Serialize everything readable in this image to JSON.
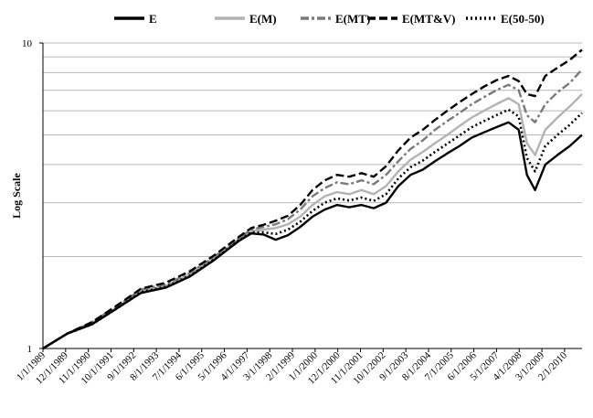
{
  "chart_data": {
    "type": "line",
    "ylabel": "Log Scale",
    "xlabel": "",
    "title": "",
    "y_scale": "log",
    "ylim": [
      1,
      10
    ],
    "y_ticks": [
      "1",
      "10"
    ],
    "grid": "horizontal",
    "legend_position": "top",
    "x_tick_labels": [
      "1/1/1989",
      "12/1/1989",
      "11/1/1990",
      "10/1/1991",
      "9/1/1992",
      "8/1/1993",
      "7/1/1994",
      "6/1/1995",
      "5/1/1996",
      "4/1/1997",
      "3/1/1998",
      "2/1/1999",
      "1/1/2000",
      "12/1/2000",
      "11/1/2001",
      "10/1/2002",
      "9/1/2003",
      "8/1/2004",
      "7/1/2005",
      "6/1/2006",
      "5/1/2007",
      "4/1/2008",
      "3/1/2009",
      "2/1/2010"
    ],
    "x": [
      "1989-01",
      "1990-01",
      "1991-01",
      "1992-01",
      "1993-01",
      "1994-01",
      "1995-01",
      "1996-01",
      "1997-01",
      "1997-07",
      "1998-01",
      "1998-07",
      "1999-01",
      "1999-07",
      "2000-01",
      "2000-07",
      "2001-01",
      "2001-07",
      "2002-01",
      "2002-07",
      "2003-01",
      "2003-07",
      "2004-01",
      "2004-07",
      "2005-01",
      "2005-07",
      "2006-01",
      "2006-07",
      "2007-01",
      "2007-07",
      "2008-01",
      "2008-06",
      "2008-10",
      "2009-02",
      "2009-07",
      "2010-01",
      "2010-07",
      "2011-01"
    ],
    "series": [
      {
        "name": "E",
        "color": "#000000",
        "style": "solid",
        "values": [
          1.0,
          1.12,
          1.2,
          1.35,
          1.52,
          1.58,
          1.72,
          1.95,
          2.25,
          2.38,
          2.36,
          2.27,
          2.35,
          2.5,
          2.7,
          2.85,
          2.95,
          2.9,
          2.95,
          2.88,
          3.0,
          3.4,
          3.7,
          3.85,
          4.1,
          4.35,
          4.6,
          4.9,
          5.1,
          5.3,
          5.5,
          5.2,
          3.7,
          3.3,
          4.0,
          4.3,
          4.6,
          5.0
        ]
      },
      {
        "name": "E(M)",
        "color": "#b3b3b3",
        "style": "solid",
        "values": [
          1.0,
          1.12,
          1.21,
          1.36,
          1.54,
          1.6,
          1.75,
          1.98,
          2.28,
          2.42,
          2.45,
          2.48,
          2.55,
          2.7,
          2.95,
          3.15,
          3.25,
          3.2,
          3.3,
          3.2,
          3.4,
          3.8,
          4.15,
          4.4,
          4.7,
          5.0,
          5.35,
          5.7,
          6.0,
          6.3,
          6.6,
          6.3,
          4.7,
          4.3,
          5.2,
          5.7,
          6.2,
          6.8
        ]
      },
      {
        "name": "E(MT)",
        "color": "#7a7a7a",
        "style": "dashdot",
        "values": [
          1.0,
          1.12,
          1.22,
          1.37,
          1.56,
          1.62,
          1.77,
          2.0,
          2.3,
          2.45,
          2.5,
          2.55,
          2.65,
          2.85,
          3.15,
          3.35,
          3.5,
          3.45,
          3.55,
          3.45,
          3.7,
          4.1,
          4.5,
          4.8,
          5.2,
          5.55,
          5.9,
          6.3,
          6.65,
          7.0,
          7.3,
          7.0,
          5.8,
          5.5,
          6.3,
          6.9,
          7.4,
          8.2
        ]
      },
      {
        "name": "E(MT&V)",
        "color": "#000000",
        "style": "dashed",
        "values": [
          1.0,
          1.12,
          1.22,
          1.38,
          1.57,
          1.64,
          1.79,
          2.02,
          2.32,
          2.48,
          2.54,
          2.62,
          2.72,
          2.95,
          3.3,
          3.55,
          3.7,
          3.65,
          3.75,
          3.65,
          3.95,
          4.45,
          4.9,
          5.2,
          5.6,
          6.0,
          6.4,
          6.8,
          7.2,
          7.55,
          7.8,
          7.5,
          6.8,
          6.7,
          7.8,
          8.3,
          8.8,
          9.5
        ]
      },
      {
        "name": "E(50-50)",
        "color": "#000000",
        "style": "dotted",
        "values": [
          1.0,
          1.12,
          1.2,
          1.35,
          1.53,
          1.59,
          1.73,
          1.96,
          2.26,
          2.4,
          2.4,
          2.37,
          2.45,
          2.6,
          2.82,
          3.0,
          3.1,
          3.05,
          3.12,
          3.04,
          3.2,
          3.6,
          3.92,
          4.12,
          4.4,
          4.68,
          4.98,
          5.3,
          5.55,
          5.8,
          6.05,
          5.75,
          4.2,
          3.8,
          4.6,
          5.0,
          5.4,
          5.9
        ]
      }
    ]
  }
}
